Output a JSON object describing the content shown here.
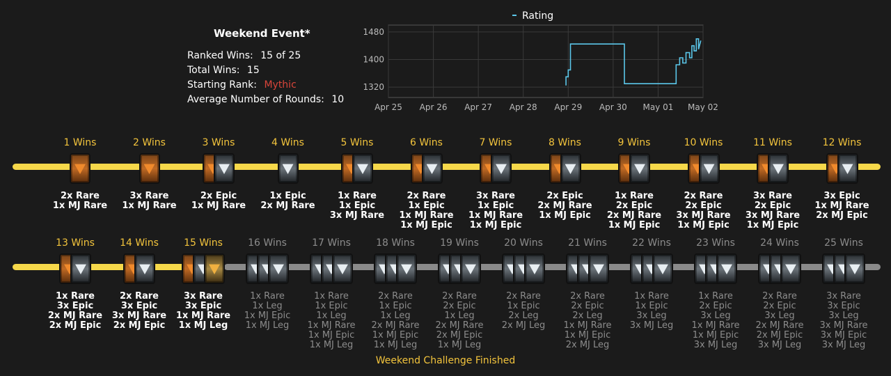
{
  "event": {
    "title": "Weekend Event*",
    "ranked_wins_label": "Ranked Wins:",
    "ranked_wins_value": "15 of 25",
    "total_wins_label": "Total Wins:",
    "total_wins_value": "15",
    "starting_rank_label": "Starting Rank:",
    "starting_rank_value": "Mythic",
    "avg_rounds_label": "Average Number of Rounds:",
    "avg_rounds_value": "10"
  },
  "colors": {
    "accent_yellow": "#f3c43c",
    "rank_red": "#d8453a",
    "line_blue": "#5bc7ea"
  },
  "chart_data": {
    "type": "line",
    "series": [
      {
        "name": "Rating",
        "x": [
          28.95,
          28.95,
          29.0,
          29.0,
          29.05,
          29.05,
          30.25,
          30.25,
          31.4,
          31.4,
          31.48,
          31.48,
          31.55,
          31.55,
          31.62,
          31.62,
          31.7,
          31.7,
          31.75,
          31.75,
          31.8,
          31.8,
          31.85,
          31.85,
          31.9,
          31.9,
          31.95
        ],
        "y": [
          1325,
          1350,
          1350,
          1370,
          1370,
          1445,
          1445,
          1330,
          1330,
          1385,
          1385,
          1405,
          1405,
          1390,
          1390,
          1420,
          1420,
          1405,
          1405,
          1440,
          1440,
          1425,
          1425,
          1460,
          1460,
          1430,
          1455
        ]
      }
    ],
    "x_ticks": [
      "Apr 25",
      "Apr 26",
      "Apr 27",
      "Apr 28",
      "Apr 29",
      "Apr 30",
      "May 01",
      "May 02"
    ],
    "x_tick_values": [
      25,
      26,
      27,
      28,
      29,
      30,
      31,
      32
    ],
    "xlim": [
      25,
      32
    ],
    "y_ticks": [
      "1320",
      "1400",
      "1480"
    ],
    "y_tick_values": [
      1320,
      1400,
      1480
    ],
    "ylim": [
      1290,
      1500
    ],
    "grid": true,
    "legend": "top-center"
  },
  "rows": [
    {
      "track": "yellow",
      "slots": [
        {
          "label": "1 Wins",
          "state": "earned",
          "packs": [
            "rare"
          ],
          "rewards": [
            "2x Rare",
            "1x MJ Rare"
          ]
        },
        {
          "label": "2 Wins",
          "state": "earned",
          "packs": [
            "rare"
          ],
          "rewards": [
            "3x Rare",
            "1x MJ Rare"
          ]
        },
        {
          "label": "3 Wins",
          "state": "earned",
          "packs": [
            "rare",
            "epic"
          ],
          "rewards": [
            "2x Epic",
            "1x MJ Rare"
          ]
        },
        {
          "label": "4 Wins",
          "state": "earned",
          "packs": [
            "epic"
          ],
          "rewards": [
            "1x Epic",
            "2x MJ Rare"
          ]
        },
        {
          "label": "5 Wins",
          "state": "earned",
          "packs": [
            "rare",
            "epic"
          ],
          "rewards": [
            "1x Rare",
            "1x Epic",
            "3x MJ Rare"
          ]
        },
        {
          "label": "6 Wins",
          "state": "earned",
          "packs": [
            "rare",
            "epic"
          ],
          "rewards": [
            "2x Rare",
            "1x Epic",
            "1x MJ Rare",
            "1x MJ Epic"
          ]
        },
        {
          "label": "7 Wins",
          "state": "earned",
          "packs": [
            "rare",
            "epic"
          ],
          "rewards": [
            "3x Rare",
            "1x Epic",
            "1x MJ Rare",
            "1x MJ Epic"
          ]
        },
        {
          "label": "8 Wins",
          "state": "earned",
          "packs": [
            "rare",
            "epic"
          ],
          "rewards": [
            "2x Epic",
            "2x MJ Rare",
            "1x MJ Epic"
          ]
        },
        {
          "label": "9 Wins",
          "state": "earned",
          "packs": [
            "rare",
            "epic"
          ],
          "rewards": [
            "1x Rare",
            "2x Epic",
            "2x MJ Rare",
            "1x MJ Epic"
          ]
        },
        {
          "label": "10 Wins",
          "state": "earned",
          "packs": [
            "rare",
            "epic"
          ],
          "rewards": [
            "2x Rare",
            "2x Epic",
            "3x MJ Rare",
            "1x MJ Epic"
          ]
        },
        {
          "label": "11 Wins",
          "state": "earned",
          "packs": [
            "rare",
            "epic"
          ],
          "rewards": [
            "3x Rare",
            "2x Epic",
            "3x MJ Rare",
            "1x MJ Epic"
          ]
        },
        {
          "label": "12 Wins",
          "state": "earned",
          "packs": [
            "rare",
            "epic"
          ],
          "rewards": [
            "3x Epic",
            "1x MJ Rare",
            "2x MJ Epic"
          ]
        }
      ]
    },
    {
      "track": "mixed",
      "slots": [
        {
          "label": "13 Wins",
          "state": "earned",
          "packs": [
            "rare",
            "epic"
          ],
          "rewards": [
            "1x Rare",
            "3x Epic",
            "2x MJ Rare",
            "2x MJ Epic"
          ]
        },
        {
          "label": "14 Wins",
          "state": "earned",
          "packs": [
            "rare",
            "epic"
          ],
          "rewards": [
            "2x Rare",
            "3x Epic",
            "3x MJ Rare",
            "2x MJ Epic"
          ]
        },
        {
          "label": "15 Wins",
          "state": "earned",
          "packs": [
            "rare",
            "epic",
            "gold"
          ],
          "rewards": [
            "3x Rare",
            "3x Epic",
            "1x MJ Rare",
            "1x MJ Leg"
          ]
        },
        {
          "label": "16 Wins",
          "state": "locked",
          "packs": [
            "epic",
            "epic",
            "epic"
          ],
          "rewards": [
            "1x Rare",
            "1x Leg",
            "1x MJ Epic",
            "1x MJ Leg"
          ]
        },
        {
          "label": "17 Wins",
          "state": "locked",
          "packs": [
            "epic",
            "epic",
            "epic"
          ],
          "rewards": [
            "1x Rare",
            "1x Epic",
            "1x Leg",
            "1x MJ Rare",
            "1x MJ Epic",
            "1x MJ Leg"
          ]
        },
        {
          "label": "18 Wins",
          "state": "locked",
          "packs": [
            "epic",
            "epic",
            "epic"
          ],
          "rewards": [
            "2x Rare",
            "1x Epic",
            "1x Leg",
            "2x MJ Rare",
            "1x MJ Epic",
            "1x MJ Leg"
          ]
        },
        {
          "label": "19 Wins",
          "state": "locked",
          "packs": [
            "epic",
            "epic",
            "epic"
          ],
          "rewards": [
            "2x Rare",
            "2x Epic",
            "1x Leg",
            "2x MJ Rare",
            "2x MJ Epic",
            "1x MJ Leg"
          ]
        },
        {
          "label": "20 Wins",
          "state": "locked",
          "packs": [
            "epic",
            "epic",
            "epic"
          ],
          "rewards": [
            "2x Rare",
            "1x Epic",
            "2x Leg",
            "2x MJ Leg"
          ]
        },
        {
          "label": "21 Wins",
          "state": "locked",
          "packs": [
            "epic",
            "epic",
            "epic"
          ],
          "rewards": [
            "2x Rare",
            "2x Epic",
            "2x Leg",
            "1x MJ Rare",
            "1x MJ Epic",
            "2x MJ Leg"
          ]
        },
        {
          "label": "22 Wins",
          "state": "locked",
          "packs": [
            "epic",
            "epic",
            "epic"
          ],
          "rewards": [
            "1x Rare",
            "1x Epic",
            "3x Leg",
            "3x MJ Leg"
          ]
        },
        {
          "label": "23 Wins",
          "state": "locked",
          "packs": [
            "epic",
            "epic",
            "epic"
          ],
          "rewards": [
            "1x Rare",
            "2x Epic",
            "3x Leg",
            "1x MJ Rare",
            "1x MJ Epic",
            "3x MJ Leg"
          ]
        },
        {
          "label": "24 Wins",
          "state": "locked",
          "packs": [
            "epic",
            "epic",
            "epic"
          ],
          "rewards": [
            "2x Rare",
            "2x Epic",
            "3x Leg",
            "2x MJ Rare",
            "2x MJ Epic",
            "3x MJ Leg"
          ]
        },
        {
          "label": "25 Wins",
          "state": "locked",
          "packs": [
            "epic",
            "epic",
            "epic"
          ],
          "rewards": [
            "3x Rare",
            "3x Epic",
            "3x Leg",
            "3x MJ Rare",
            "3x MJ Epic",
            "3x MJ Leg"
          ]
        }
      ]
    }
  ],
  "footer": {
    "finished_label": "Weekend Challenge Finished"
  }
}
